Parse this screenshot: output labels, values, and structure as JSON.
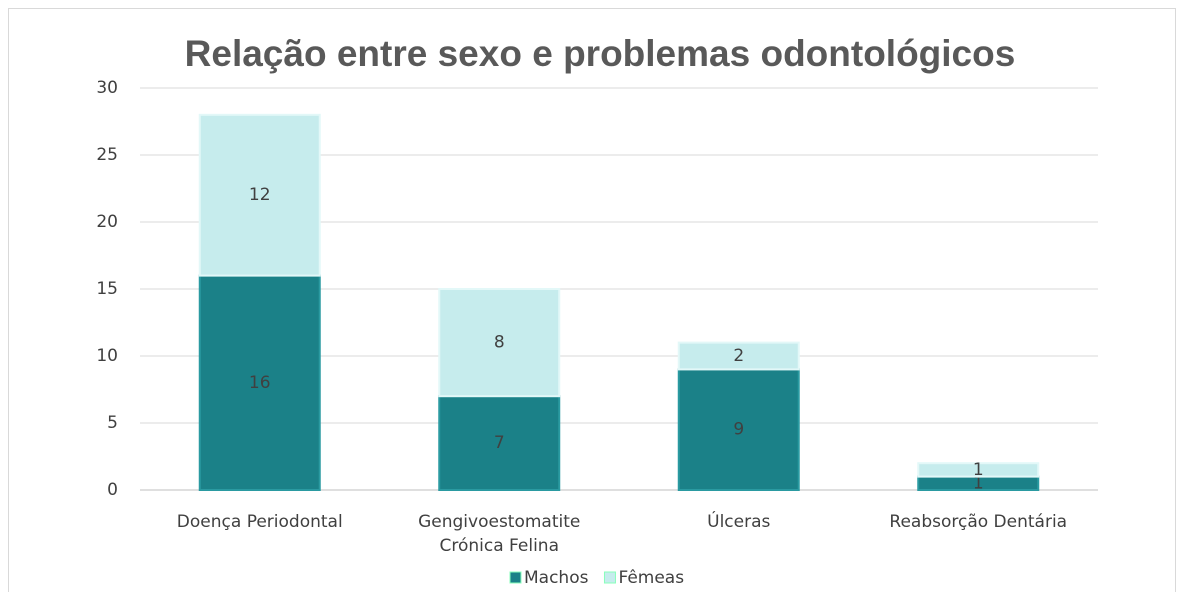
{
  "chart_data": {
    "type": "stacked_bar",
    "title": "Relação entre sexo e problemas odontológicos",
    "categories": [
      "Doença Periodontal",
      "Gengivoestomatite\nCrónica Felina",
      "Úlceras",
      "Reabsorção Dentária"
    ],
    "series": [
      {
        "name": "Machos",
        "color": "#1b8188",
        "values": [
          16,
          7,
          9,
          1
        ]
      },
      {
        "name": "Fêmeas",
        "color": "#c6eced",
        "values": [
          12,
          8,
          2,
          1
        ]
      }
    ],
    "ylim": [
      0,
      30
    ],
    "yticks": [
      0,
      5,
      10,
      15,
      20,
      25,
      30
    ],
    "grid": true,
    "legend": "bottom"
  }
}
